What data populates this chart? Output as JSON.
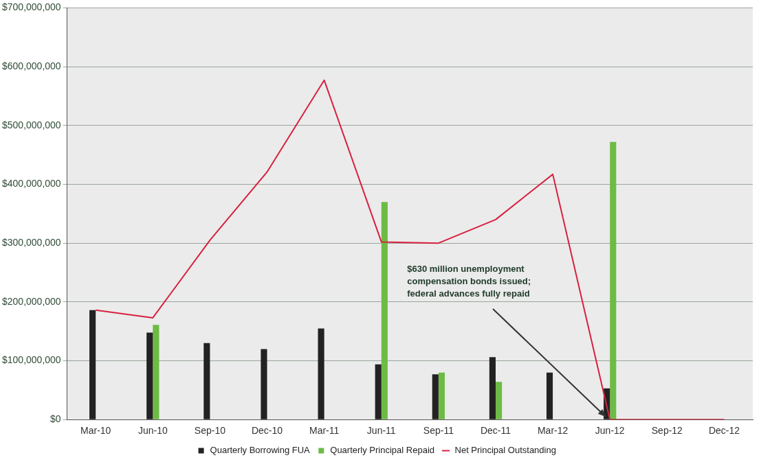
{
  "chart_data": {
    "type": "bar",
    "categories": [
      "Mar-10",
      "Jun-10",
      "Sep-10",
      "Dec-10",
      "Mar-11",
      "Jun-11",
      "Sep-11",
      "Dec-11",
      "Mar-12",
      "Jun-12",
      "Sep-12",
      "Dec-12"
    ],
    "series": [
      {
        "name": "Quarterly Borrowing FUA",
        "color": "#222222",
        "values": [
          186000000,
          148000000,
          130000000,
          120000000,
          155000000,
          94000000,
          77000000,
          106000000,
          80000000,
          53000000,
          null,
          null
        ]
      },
      {
        "name": "Quarterly Principal Repaid",
        "color": "#6dbb45",
        "values": [
          null,
          161000000,
          null,
          null,
          null,
          370000000,
          80000000,
          64000000,
          null,
          472000000,
          null,
          null
        ]
      },
      {
        "name": "Net Principal Outstanding",
        "type": "line",
        "color": "#d81f3f",
        "values": [
          186000000,
          173000000,
          305000000,
          421000000,
          577000000,
          302000000,
          300000000,
          340000000,
          417000000,
          0,
          0,
          0
        ]
      }
    ],
    "ylim": [
      0,
      700000000
    ],
    "yticks": [
      {
        "value": 0,
        "label": "$0"
      },
      {
        "value": 100000000,
        "label": "$100,000,000"
      },
      {
        "value": 200000000,
        "label": "$200,000,000"
      },
      {
        "value": 300000000,
        "label": "$300,000,000"
      },
      {
        "value": 400000000,
        "label": "$400,000,000"
      },
      {
        "value": 500000000,
        "label": "$500,000,000"
      },
      {
        "value": 600000000,
        "label": "$600,000,000"
      },
      {
        "value": 700000000,
        "label": "$700,000,000"
      }
    ],
    "grid": "y",
    "legend": "bottom",
    "marker": "none",
    "annotations": [
      {
        "text": "$630 million unemployment compensation bonds issued; federal advances fully repaid",
        "x": "Jun-12",
        "y": 0
      }
    ]
  }
}
